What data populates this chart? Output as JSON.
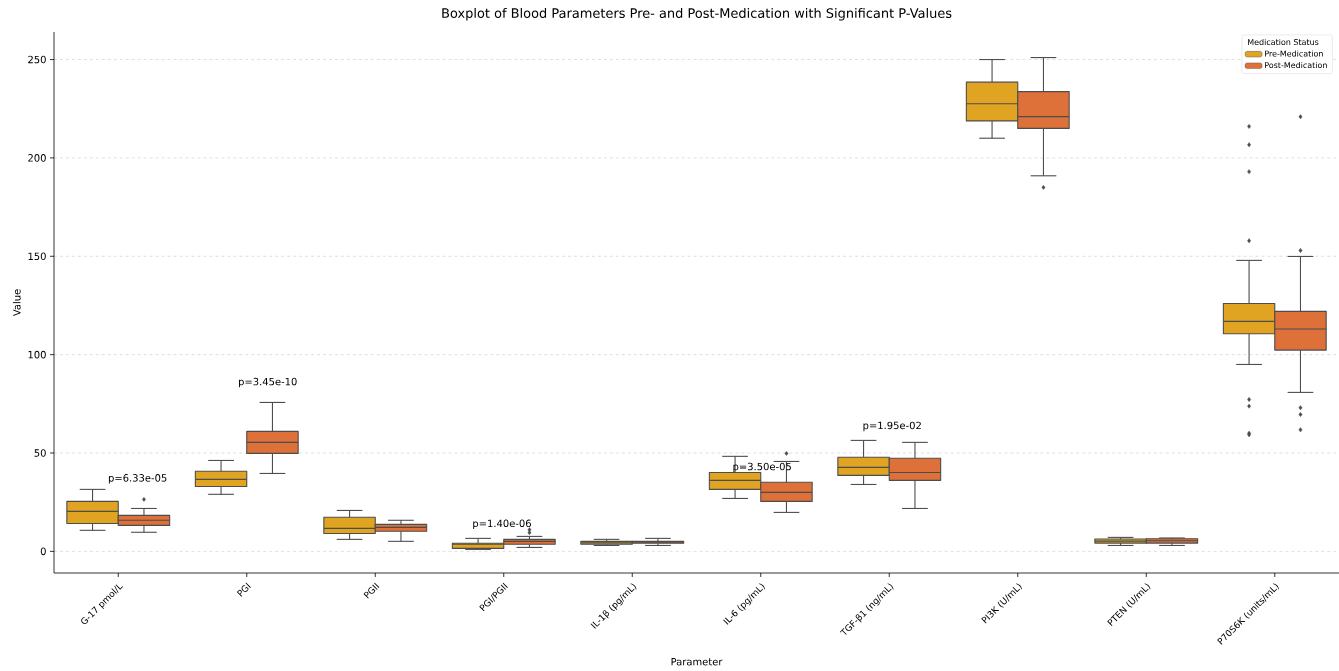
{
  "chart_data": {
    "type": "box",
    "title": "Boxplot of Blood Parameters Pre- and Post-Medication with Significant P-Values",
    "xlabel": "Parameter",
    "ylabel": "Value",
    "legend_title": "Medication Status",
    "categories": [
      "G-17 pmol/L",
      "PGI",
      "PGII",
      "PGI/PGII",
      "IL-1β (pg/mL)",
      "IL-6 (pg/mL)",
      "TGF-β1 (ng/mL)",
      "PI3K (U/mL)",
      "PTEN (U/mL)",
      "P70S6K (units/mL)"
    ],
    "series": [
      {
        "name": "Pre-Medication",
        "color": "#e0a422",
        "boxes": [
          {
            "low": 10.7,
            "q1": 14.2,
            "median": 20.3,
            "q3": 25.4,
            "high": 31.5
          },
          {
            "low": 29,
            "q1": 33,
            "median": 36.6,
            "q3": 40.7,
            "high": 46.2
          },
          {
            "low": 6.1,
            "q1": 9.1,
            "median": 11.7,
            "q3": 17.3,
            "high": 20.8
          },
          {
            "low": 1,
            "q1": 1.5,
            "median": 3.6,
            "q3": 4.1,
            "high": 6.6
          },
          {
            "low": 3,
            "q1": 3.6,
            "median": 4.3,
            "q3": 5.1,
            "high": 6.1
          },
          {
            "low": 26.9,
            "q1": 31.5,
            "median": 36.1,
            "q3": 40.1,
            "high": 48.3
          },
          {
            "low": 34,
            "q1": 38.6,
            "median": 42.7,
            "q3": 47.8,
            "high": 56.4
          },
          {
            "low": 210,
            "q1": 218.8,
            "median": 227.5,
            "q3": 238.5,
            "high": 250
          },
          {
            "low": 3,
            "q1": 4.2,
            "median": 5.2,
            "q3": 6.3,
            "high": 7.1
          },
          {
            "low": 95,
            "q1": 110.6,
            "median": 116.9,
            "q3": 126,
            "high": 147.9,
            "outliers": [
              216,
              206.7,
              193,
              157.9,
              77.2,
              73.8,
              60,
              59.3
            ]
          }
        ]
      },
      {
        "name": "Post-Medication",
        "color": "#dd7139",
        "boxes": [
          {
            "low": 9.7,
            "q1": 13.2,
            "median": 15.8,
            "q3": 18.3,
            "high": 21.8,
            "outliers": [
              26.4
            ]
          },
          {
            "low": 39.6,
            "q1": 49.8,
            "median": 55.4,
            "q3": 61,
            "high": 75.7
          },
          {
            "low": 5.1,
            "q1": 10.2,
            "median": 12.2,
            "q3": 13.7,
            "high": 15.8
          },
          {
            "low": 2,
            "q1": 3.6,
            "median": 5.1,
            "q3": 6.1,
            "high": 7.6,
            "outliers": [
              11,
              9.5
            ]
          },
          {
            "low": 3,
            "q1": 4.1,
            "median": 4.6,
            "q3": 5.1,
            "high": 6.6
          },
          {
            "low": 19.8,
            "q1": 25.4,
            "median": 30,
            "q3": 35.1,
            "high": 45.7,
            "outliers": [
              49.8
            ]
          },
          {
            "low": 21.8,
            "q1": 36.1,
            "median": 40.1,
            "q3": 47.3,
            "high": 55.4
          },
          {
            "low": 190.9,
            "q1": 215,
            "median": 221,
            "q3": 233.7,
            "high": 251,
            "outliers": [
              185
            ]
          },
          {
            "low": 3,
            "q1": 4.2,
            "median": 5.4,
            "q3": 6.4,
            "high": 6.8
          },
          {
            "low": 80.8,
            "q1": 102.3,
            "median": 113,
            "q3": 122,
            "high": 149.9,
            "outliers": [
              220.9,
              152.9,
              73,
              69.6,
              61.8
            ]
          }
        ]
      }
    ],
    "ylim": [
      -11,
      264
    ],
    "yticks": [
      0,
      50,
      100,
      150,
      200,
      250
    ],
    "grid": "y",
    "legend": "top right",
    "marker": "diamond",
    "annotations": [
      "p=6.33e-05",
      "p=3.45e-10",
      "p=1.40e-06",
      "p=3.50e-05",
      "p=1.95e-02"
    ]
  }
}
